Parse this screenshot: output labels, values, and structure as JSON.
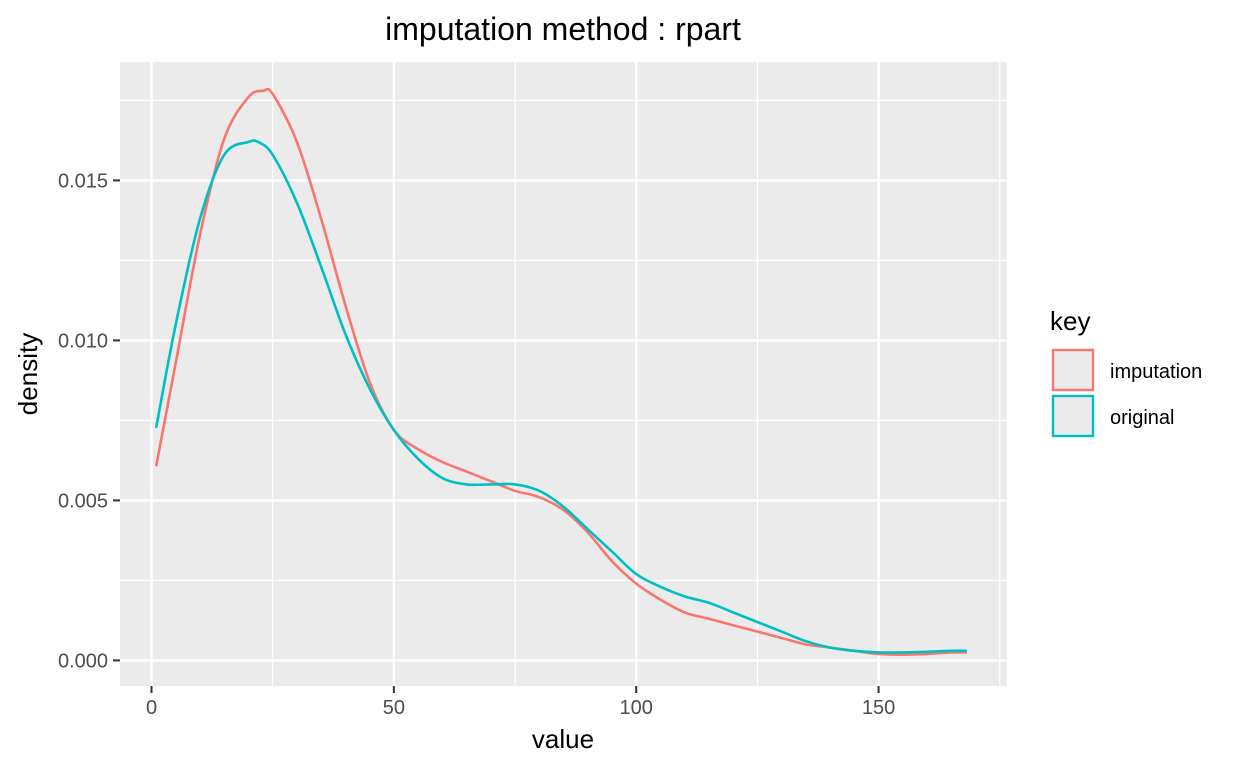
{
  "chart_data": {
    "type": "line",
    "title": "imputation method : rpart",
    "xlabel": "value",
    "ylabel": "density",
    "xlim": [
      -6.5,
      176.5
    ],
    "ylim": [
      -0.0008,
      0.0187
    ],
    "x_ticks": [
      0,
      50,
      100,
      150
    ],
    "x_tick_labels": [
      "0",
      "50",
      "100",
      "150"
    ],
    "y_ticks": [
      0.0,
      0.005,
      0.01,
      0.015
    ],
    "y_tick_labels": [
      "0.000",
      "0.005",
      "0.010",
      "0.015"
    ],
    "grid": true,
    "legend": {
      "title": "key",
      "position": "right",
      "entries": [
        "imputation",
        "original"
      ]
    },
    "series": [
      {
        "name": "imputation",
        "color": "#F8766D",
        "x": [
          1,
          5,
          10,
          15,
          20,
          23,
          25,
          30,
          35,
          40,
          45,
          50,
          55,
          60,
          65,
          70,
          75,
          80,
          85,
          90,
          95,
          100,
          105,
          110,
          115,
          120,
          125,
          130,
          135,
          140,
          145,
          150,
          155,
          160,
          165,
          168
        ],
        "y": [
          0.0061,
          0.0093,
          0.0133,
          0.0163,
          0.0176,
          0.0178,
          0.0177,
          0.0162,
          0.0138,
          0.0111,
          0.0087,
          0.0072,
          0.0066,
          0.0062,
          0.0059,
          0.0056,
          0.0053,
          0.0051,
          0.0047,
          0.004,
          0.0031,
          0.0024,
          0.0019,
          0.0015,
          0.0013,
          0.0011,
          0.0009,
          0.0007,
          0.0005,
          0.0004,
          0.0003,
          0.0002,
          0.00018,
          0.0002,
          0.00025,
          0.00025
        ]
      },
      {
        "name": "original",
        "color": "#00BFC4",
        "x": [
          1,
          5,
          10,
          15,
          20,
          22,
          25,
          30,
          35,
          40,
          45,
          50,
          55,
          60,
          65,
          70,
          75,
          80,
          85,
          90,
          95,
          100,
          105,
          110,
          115,
          120,
          125,
          130,
          135,
          140,
          145,
          150,
          155,
          160,
          165,
          168
        ],
        "y": [
          0.0073,
          0.0105,
          0.0138,
          0.0158,
          0.0162,
          0.0162,
          0.0158,
          0.0143,
          0.0123,
          0.0102,
          0.0085,
          0.0072,
          0.0063,
          0.0057,
          0.0055,
          0.0055,
          0.0055,
          0.0053,
          0.0048,
          0.0041,
          0.0034,
          0.0027,
          0.0023,
          0.002,
          0.0018,
          0.0015,
          0.0012,
          0.0009,
          0.0006,
          0.0004,
          0.0003,
          0.00025,
          0.00025,
          0.00027,
          0.0003,
          0.0003
        ]
      }
    ],
    "colors": {
      "panel_bg": "#EBEBEB",
      "grid_major": "#FFFFFF",
      "text": "#000000",
      "tick_text": "#4D4D4D"
    }
  }
}
